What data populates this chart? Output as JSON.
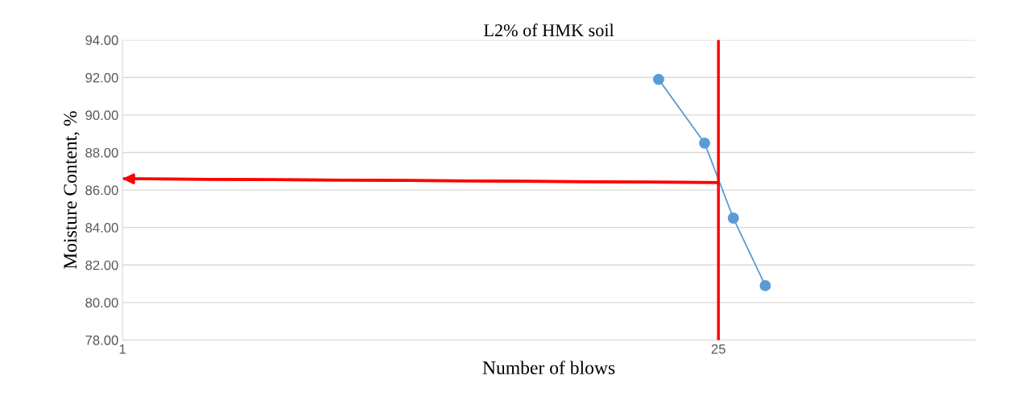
{
  "chart_data": {
    "type": "line",
    "title": "L2% of HMK soil",
    "xlabel": "Number of blows",
    "ylabel": "Moisture Content, %",
    "log": "x",
    "xlim": [
      1,
      100
    ],
    "xticks": [
      1,
      25
    ],
    "ylim": [
      78,
      94
    ],
    "yticks": [
      {
        "value": 78,
        "label": "78.00"
      },
      {
        "value": 80,
        "label": "80.00"
      },
      {
        "value": 82,
        "label": "82.00"
      },
      {
        "value": 84,
        "label": "84.00"
      },
      {
        "value": 86,
        "label": "86.00"
      },
      {
        "value": 88,
        "label": "88.00"
      },
      {
        "value": 90,
        "label": "90.00"
      },
      {
        "value": 92,
        "label": "92.00"
      },
      {
        "value": 94,
        "label": "94.00"
      }
    ],
    "grid": "y",
    "legend": false,
    "series": [
      {
        "color": "#5b9bd5",
        "marker": "circle",
        "x": [
          18.1,
          23.2,
          27.1,
          32.2
        ],
        "values": [
          91.9,
          88.5,
          84.5,
          80.9
        ]
      },
      {
        "color": "#ff0000",
        "marker": "none",
        "x": [
          25,
          1
        ],
        "values": [
          86.4,
          86.6
        ]
      }
    ],
    "ref_lines": [
      {
        "axis": "x",
        "value": 25,
        "color": "#ff0000"
      }
    ]
  }
}
